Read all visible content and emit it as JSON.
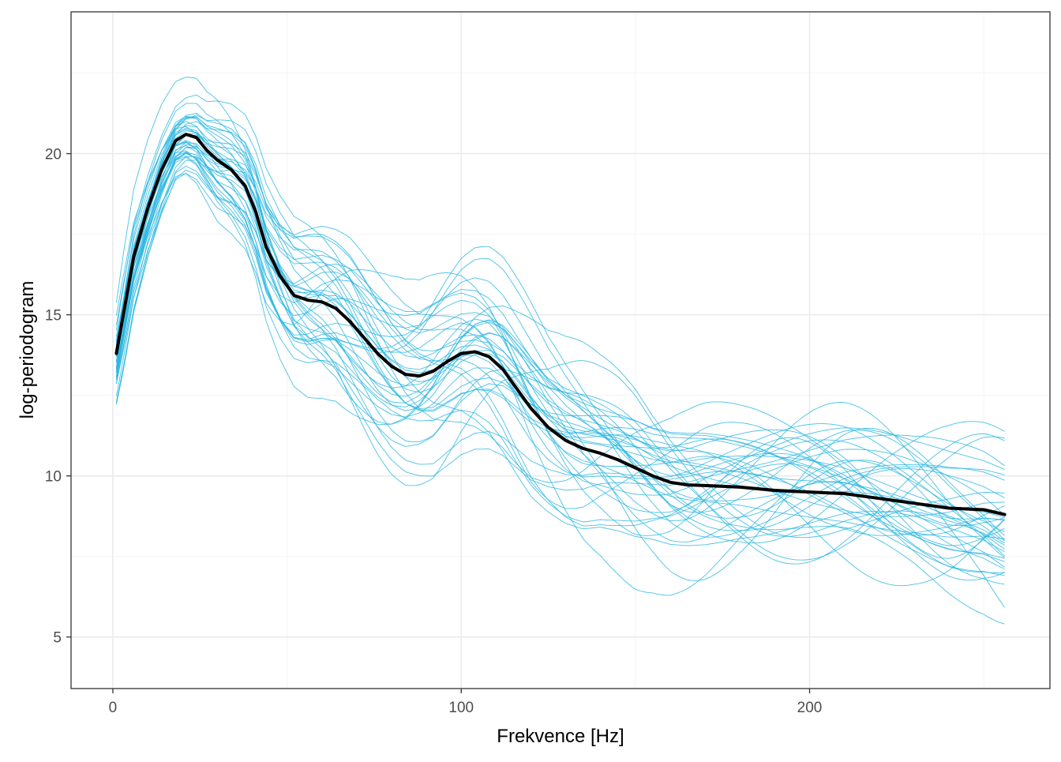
{
  "chart_data": {
    "type": "line",
    "title": "",
    "xlabel": "Frekvence [Hz]",
    "ylabel": "log-periodogram",
    "xlim": [
      -12,
      269
    ],
    "ylim": [
      3.4,
      24.4
    ],
    "x_ticks": [
      0,
      100,
      200
    ],
    "y_ticks": [
      5,
      10,
      15,
      20
    ],
    "x_tick_labels": [
      "0",
      "100",
      "200"
    ],
    "y_tick_labels": [
      "5",
      "10",
      "15",
      "20"
    ],
    "grid": true,
    "legend": "none",
    "colors": {
      "individual": "#29b6e0",
      "mean": "#000000"
    },
    "mean_curve": {
      "x": [
        1,
        3,
        6,
        10,
        14,
        18,
        21,
        24,
        27,
        30,
        34,
        38,
        41,
        44,
        48,
        52,
        56,
        60,
        64,
        68,
        72,
        76,
        80,
        84,
        88,
        92,
        96,
        100,
        104,
        108,
        112,
        116,
        120,
        125,
        130,
        135,
        140,
        145,
        150,
        155,
        160,
        165,
        170,
        180,
        190,
        200,
        210,
        220,
        230,
        240,
        250,
        256
      ],
      "y": [
        13.8,
        15.0,
        16.8,
        18.3,
        19.5,
        20.4,
        20.6,
        20.5,
        20.1,
        19.8,
        19.5,
        19.0,
        18.2,
        17.1,
        16.2,
        15.6,
        15.45,
        15.4,
        15.2,
        14.8,
        14.3,
        13.8,
        13.4,
        13.15,
        13.1,
        13.25,
        13.55,
        13.8,
        13.85,
        13.7,
        13.3,
        12.7,
        12.1,
        11.5,
        11.1,
        10.85,
        10.7,
        10.5,
        10.25,
        10.0,
        9.8,
        9.72,
        9.7,
        9.65,
        9.55,
        9.5,
        9.45,
        9.3,
        9.15,
        9.0,
        8.95,
        8.8
      ]
    },
    "individual_curves": {
      "count": 40,
      "x_range": [
        1,
        256
      ],
      "description_values": {
        "x": [
          1,
          3,
          6,
          10,
          14,
          18,
          21,
          24,
          27,
          30,
          34,
          38,
          41,
          44,
          48,
          52,
          56,
          60,
          64,
          68,
          72,
          76,
          80,
          84,
          88,
          92,
          96,
          100,
          104,
          108,
          112,
          116,
          120,
          125,
          130,
          135,
          140,
          145,
          150,
          155,
          160,
          165,
          170,
          180,
          190,
          200,
          210,
          220,
          230,
          240,
          250,
          256
        ],
        "spread": [
          1.2,
          1.3,
          1.3,
          1.2,
          1.1,
          1.0,
          1.0,
          1.1,
          1.2,
          1.4,
          1.5,
          1.6,
          1.7,
          1.8,
          1.9,
          2.0,
          2.1,
          2.1,
          2.1,
          2.2,
          2.2,
          2.2,
          2.2,
          2.2,
          2.2,
          2.3,
          2.3,
          2.3,
          2.3,
          2.3,
          2.3,
          2.3,
          2.3,
          2.2,
          2.2,
          2.2,
          2.1,
          2.1,
          2.1,
          2.0,
          2.0,
          2.0,
          2.0,
          1.9,
          1.9,
          1.9,
          1.9,
          1.9,
          1.9,
          2.0,
          2.1,
          2.2
        ]
      }
    }
  }
}
